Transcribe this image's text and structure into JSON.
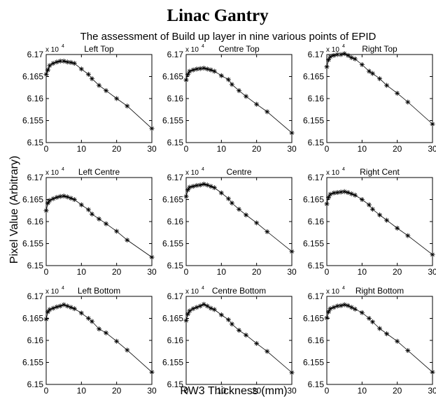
{
  "header": {
    "title": "Linac Gantry",
    "subtitle": "The assessment of Build up layer in nine various points of EPID",
    "ylabel": "Pixel Value (Arbitrary)",
    "xlabel": "RW3 Thickness (mm)",
    "multiplier_base": "x 10",
    "multiplier_exp": "4"
  },
  "chart_data": [
    {
      "type": "line",
      "title": "Left Top",
      "xlim": [
        0,
        30
      ],
      "ylim": [
        6.15,
        6.17
      ],
      "xticks": [
        "0",
        "10",
        "20",
        "30"
      ],
      "yticks": [
        "6.15",
        "6.155",
        "6.16",
        "6.165",
        "6.17"
      ],
      "x": [
        0,
        0.5,
        1,
        2,
        3,
        4,
        5,
        6,
        7,
        8,
        10,
        12,
        13,
        15,
        17,
        20,
        23,
        30
      ],
      "y": [
        6.1655,
        6.1665,
        6.1675,
        6.168,
        6.1683,
        6.1685,
        6.1685,
        6.1683,
        6.1682,
        6.168,
        6.1667,
        6.1655,
        6.1645,
        6.163,
        6.1618,
        6.16,
        6.1583,
        6.1532
      ]
    },
    {
      "type": "line",
      "title": "Centre Top",
      "xlim": [
        0,
        30
      ],
      "ylim": [
        6.15,
        6.17
      ],
      "xticks": [
        "0",
        "10",
        "20",
        "30"
      ],
      "yticks": [
        "6.15",
        "6.155",
        "6.16",
        "6.165",
        "6.17"
      ],
      "x": [
        0,
        0.5,
        1,
        2,
        3,
        4,
        5,
        6,
        7,
        8,
        10,
        12,
        13,
        15,
        17,
        20,
        23,
        30
      ],
      "y": [
        6.1642,
        6.1655,
        6.1662,
        6.1665,
        6.1667,
        6.1668,
        6.1669,
        6.1667,
        6.1665,
        6.1662,
        6.1652,
        6.1643,
        6.1632,
        6.1618,
        6.1605,
        6.1587,
        6.157,
        6.1522
      ]
    },
    {
      "type": "line",
      "title": "Right Top",
      "xlim": [
        0,
        30
      ],
      "ylim": [
        6.15,
        6.17
      ],
      "xticks": [
        "0",
        "10",
        "20",
        "30"
      ],
      "yticks": [
        "6.15",
        "6.155",
        "6.16",
        "6.165",
        "6.17"
      ],
      "x": [
        0,
        0.5,
        1,
        2,
        3,
        4,
        5,
        6,
        7,
        8,
        10,
        12,
        13,
        15,
        17,
        20,
        23,
        30
      ],
      "y": [
        6.1672,
        6.1688,
        6.1695,
        6.1698,
        6.17,
        6.17,
        6.1702,
        6.1698,
        6.1693,
        6.169,
        6.1677,
        6.1662,
        6.1657,
        6.1645,
        6.163,
        6.1612,
        6.1592,
        6.1542
      ]
    },
    {
      "type": "line",
      "title": "Left Centre",
      "xlim": [
        0,
        30
      ],
      "ylim": [
        6.15,
        6.17
      ],
      "xticks": [
        "0",
        "10",
        "20",
        "30"
      ],
      "yticks": [
        "6.15",
        "6.155",
        "6.16",
        "6.165",
        "6.17"
      ],
      "x": [
        0,
        0.5,
        1,
        2,
        3,
        4,
        5,
        6,
        7,
        8,
        10,
        12,
        13,
        15,
        17,
        20,
        23,
        30
      ],
      "y": [
        6.1625,
        6.1642,
        6.1648,
        6.1652,
        6.1655,
        6.1657,
        6.1658,
        6.1656,
        6.1653,
        6.165,
        6.1638,
        6.1627,
        6.1617,
        6.1606,
        6.1595,
        6.1578,
        6.1558,
        6.1519
      ]
    },
    {
      "type": "line",
      "title": "Centre",
      "xlim": [
        0,
        30
      ],
      "ylim": [
        6.15,
        6.17
      ],
      "xticks": [
        "0",
        "10",
        "20",
        "30"
      ],
      "yticks": [
        "6.15",
        "6.155",
        "6.16",
        "6.165",
        "6.17"
      ],
      "x": [
        0,
        0.5,
        1,
        2,
        3,
        4,
        5,
        6,
        7,
        8,
        10,
        12,
        13,
        15,
        17,
        20,
        23,
        30
      ],
      "y": [
        6.1657,
        6.1672,
        6.1678,
        6.168,
        6.1682,
        6.1683,
        6.1685,
        6.1683,
        6.168,
        6.1677,
        6.1665,
        6.1652,
        6.1642,
        6.1628,
        6.1615,
        6.1597,
        6.1577,
        6.1532
      ]
    },
    {
      "type": "line",
      "title": "Right Cent",
      "xlim": [
        0,
        30
      ],
      "ylim": [
        6.15,
        6.17
      ],
      "xticks": [
        "0",
        "10",
        "20",
        "30"
      ],
      "yticks": [
        "6.15",
        "6.155",
        "6.16",
        "6.165",
        "6.17"
      ],
      "x": [
        0,
        0.5,
        1,
        2,
        3,
        4,
        5,
        6,
        7,
        8,
        10,
        12,
        13,
        15,
        17,
        20,
        23,
        30
      ],
      "y": [
        6.164,
        6.1655,
        6.1662,
        6.1665,
        6.1666,
        6.1667,
        6.1668,
        6.1666,
        6.1663,
        6.166,
        6.165,
        6.1638,
        6.1628,
        6.1615,
        6.1603,
        6.1585,
        6.1568,
        6.1525
      ]
    },
    {
      "type": "line",
      "title": "Left Bottom",
      "xlim": [
        0,
        30
      ],
      "ylim": [
        6.15,
        6.17
      ],
      "xticks": [
        "0",
        "10",
        "20",
        "30"
      ],
      "yticks": [
        "6.15",
        "6.155",
        "6.16",
        "6.165",
        "6.17"
      ],
      "x": [
        0,
        0.5,
        1,
        2,
        3,
        4,
        5,
        6,
        7,
        8,
        10,
        12,
        13,
        15,
        17,
        20,
        23,
        30
      ],
      "y": [
        6.1648,
        6.1665,
        6.167,
        6.1673,
        6.1676,
        6.1678,
        6.1681,
        6.1678,
        6.1675,
        6.1672,
        6.1662,
        6.165,
        6.1643,
        6.1626,
        6.1617,
        6.1598,
        6.1578,
        6.1528
      ]
    },
    {
      "type": "line",
      "title": "Centre Bottom",
      "xlim": [
        0,
        30
      ],
      "ylim": [
        6.15,
        6.17
      ],
      "xticks": [
        "0",
        "10",
        "20",
        "30"
      ],
      "yticks": [
        "6.15",
        "6.155",
        "6.16",
        "6.165",
        "6.17"
      ],
      "x": [
        0,
        0.5,
        1,
        2,
        3,
        4,
        5,
        6,
        7,
        8,
        10,
        12,
        13,
        15,
        17,
        20,
        23,
        30
      ],
      "y": [
        6.1645,
        6.166,
        6.1667,
        6.1672,
        6.1675,
        6.1678,
        6.1682,
        6.1678,
        6.1673,
        6.167,
        6.1658,
        6.1647,
        6.1637,
        6.1623,
        6.1612,
        6.1593,
        6.1575,
        6.1527
      ]
    },
    {
      "type": "line",
      "title": "Right Bottom",
      "xlim": [
        0,
        30
      ],
      "ylim": [
        6.15,
        6.17
      ],
      "xticks": [
        "0",
        "10",
        "20",
        "30"
      ],
      "yticks": [
        "6.15",
        "6.155",
        "6.16",
        "6.165",
        "6.17"
      ],
      "x": [
        0,
        0.5,
        1,
        2,
        3,
        4,
        5,
        6,
        7,
        8,
        10,
        12,
        13,
        15,
        17,
        20,
        23,
        30
      ],
      "y": [
        6.1651,
        6.1665,
        6.1672,
        6.1675,
        6.1678,
        6.1679,
        6.1681,
        6.1679,
        6.1675,
        6.1671,
        6.1663,
        6.165,
        6.1642,
        6.1627,
        6.1615,
        6.1598,
        6.1577,
        6.1528
      ]
    }
  ]
}
